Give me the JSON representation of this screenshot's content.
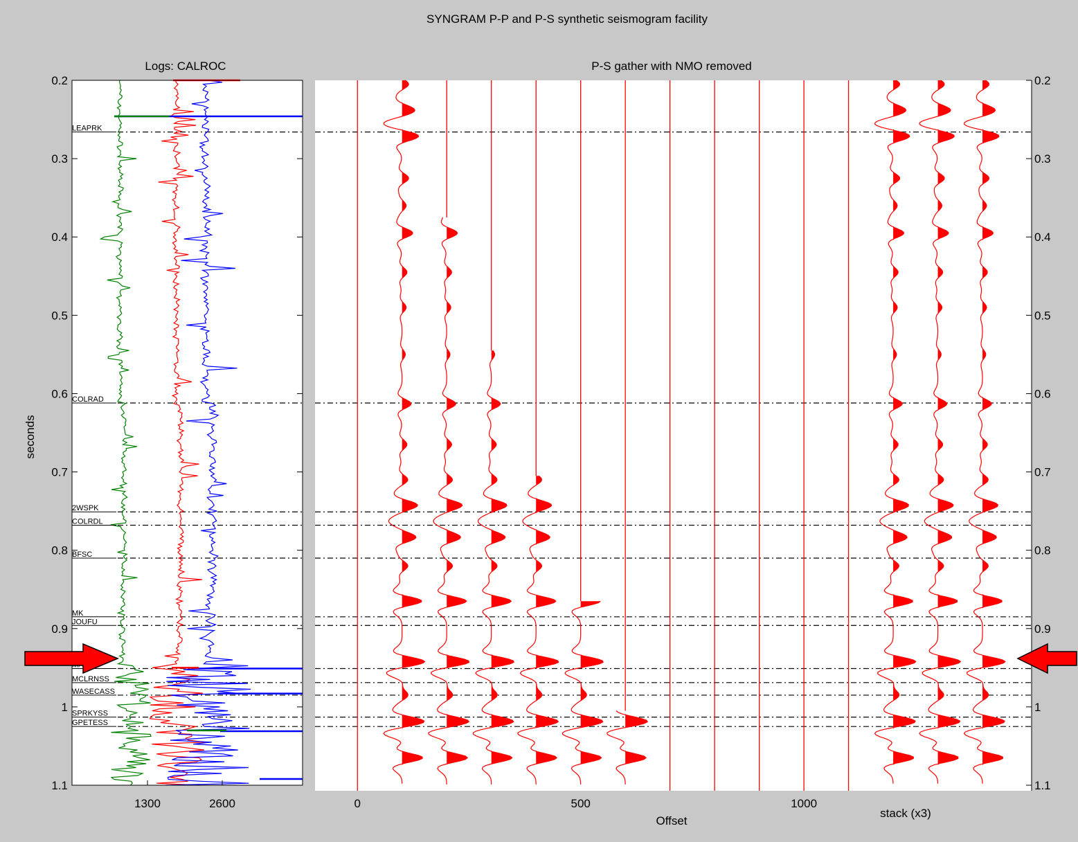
{
  "figure_title": "SYNGRAM P-P and P-S synthetic seismogram facility",
  "colors": {
    "background": "#c8c8c8",
    "log_velocity": "#008000",
    "log_density": "#ff0000",
    "log_impedance": "#0000ff",
    "traces": "#ff0000",
    "arrows": "#ff0000",
    "horizons": "#000000"
  },
  "chart_data": [
    {
      "type": "line",
      "title": "Logs: CALROC",
      "ylabel": "seconds",
      "xlabel": "",
      "ylim": [
        1.1,
        0.2
      ],
      "y_ticks": [
        "0.2",
        "0.3",
        "0.4",
        "0.5",
        "0.6",
        "0.7",
        "0.8",
        "0.9",
        "1",
        "1.1"
      ],
      "x_ticks": [
        "1300",
        "2600"
      ],
      "grid": false,
      "series": [
        {
          "color": "#008000",
          "base": 650,
          "scale": 130
        },
        {
          "color": "#ff0000",
          "base": 1650,
          "scale": 150
        },
        {
          "color": "#0000ff",
          "base": 2180,
          "scale": 220
        }
      ],
      "horizons": [
        {
          "name": "LEAPRK",
          "time": 0.266
        },
        {
          "name": "COLRAD",
          "time": 0.612
        },
        {
          "name": "2WSPK",
          "time": 0.751
        },
        {
          "name": "COLRDL",
          "time": 0.768
        },
        {
          "name": "BFSC",
          "time": 0.81
        },
        {
          "name": "MK",
          "time": 0.885
        },
        {
          "name": "JOUFU",
          "time": 0.896
        },
        {
          "name": "MANS",
          "time": 0.951
        },
        {
          "name": "MCLRNSS",
          "time": 0.969
        },
        {
          "name": "WASECASS",
          "time": 0.985
        },
        {
          "name": "SPRKYSS",
          "time": 1.013
        },
        {
          "name": "GPETESS",
          "time": 1.025
        }
      ]
    },
    {
      "type": "line",
      "title": "P-S gather with NMO removed",
      "xlabel": "Offset",
      "stack_label": "stack (x3)",
      "x_ticks": [
        "0",
        "500",
        "1000"
      ],
      "xlim": [
        -95,
        1510
      ],
      "ylim": [
        1.1,
        0.2
      ],
      "y_ticks_right": [
        "0.2",
        "0.3",
        "0.4",
        "0.5",
        "0.6",
        "0.7",
        "0.8",
        "0.9",
        "1",
        "1.1"
      ],
      "trace_offsets": [
        0,
        100,
        200,
        300,
        400,
        500,
        600,
        700,
        800,
        900,
        1000,
        1100
      ],
      "trace_mute_times": [
        1.1,
        0.2,
        0.375,
        0.545,
        0.705,
        0.865,
        1.005,
        1.1,
        1.1,
        1.1,
        1.1,
        1.1
      ],
      "stack_offsets": [
        1200,
        1300,
        1400
      ],
      "wavelet_events": [
        {
          "time": 0.205,
          "amp": 0.4
        },
        {
          "time": 0.237,
          "amp": 0.55
        },
        {
          "time": 0.255,
          "amp": -0.7
        },
        {
          "time": 0.272,
          "amp": 0.75
        },
        {
          "time": 0.325,
          "amp": 0.4
        },
        {
          "time": 0.36,
          "amp": 0.25
        },
        {
          "time": 0.395,
          "amp": 0.65
        },
        {
          "time": 0.445,
          "amp": 0.3
        },
        {
          "time": 0.49,
          "amp": 0.25
        },
        {
          "time": 0.55,
          "amp": 0.2
        },
        {
          "time": 0.613,
          "amp": 0.55
        },
        {
          "time": 0.665,
          "amp": 0.3
        },
        {
          "time": 0.71,
          "amp": 0.35
        },
        {
          "time": 0.742,
          "amp": 0.85
        },
        {
          "time": 0.763,
          "amp": -0.55
        },
        {
          "time": 0.784,
          "amp": 0.75
        },
        {
          "time": 0.82,
          "amp": 0.35
        },
        {
          "time": 0.865,
          "amp": 1.2
        },
        {
          "time": 0.942,
          "amp": 1.2
        },
        {
          "time": 0.958,
          "amp": -0.45
        },
        {
          "time": 0.985,
          "amp": 0.35
        },
        {
          "time": 1.018,
          "amp": 1.1
        },
        {
          "time": 1.035,
          "amp": -0.7
        },
        {
          "time": 1.065,
          "amp": 1.25
        }
      ]
    }
  ]
}
